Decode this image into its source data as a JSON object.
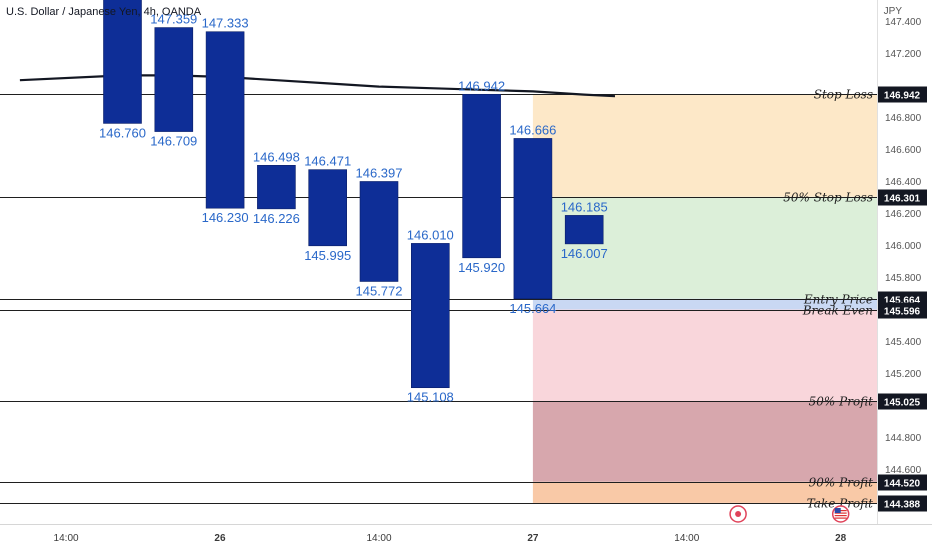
{
  "header": {
    "title": "U.S. Dollar / Japanese Yen, 4h, OANDA",
    "currency": "JPY"
  },
  "chart_data": {
    "type": "candlestick",
    "ylim": [
      144.35,
      147.55
    ],
    "y_ticks": [
      "147.400",
      "147.200",
      "147.000",
      "146.800",
      "146.600",
      "146.400",
      "146.200",
      "146.000",
      "145.800",
      "145.600",
      "145.400",
      "145.200",
      "145.000",
      "144.800",
      "144.600"
    ],
    "x_ticks": [
      {
        "label": "14:00",
        "t": -1.1
      },
      {
        "label": "26",
        "t": 1.9
      },
      {
        "label": "14:00",
        "t": 5.0
      },
      {
        "label": "27",
        "t": 8.0
      },
      {
        "label": "14:00",
        "t": 11.0
      },
      {
        "label": "28",
        "t": 14.0
      }
    ],
    "candles": [
      {
        "t": 0,
        "open": 146.76,
        "close": 147.6,
        "low_label": "146.760",
        "high_label": ""
      },
      {
        "t": 1,
        "open": 146.709,
        "close": 147.359,
        "low_label": "146.709",
        "high_label": "147.359"
      },
      {
        "t": 2,
        "open": 146.23,
        "close": 147.333,
        "low_label": "146.230",
        "high_label": "147.333"
      },
      {
        "t": 3,
        "open": 146.226,
        "close": 146.498,
        "low_label": "146.226",
        "high_label": "146.498"
      },
      {
        "t": 4,
        "open": 145.995,
        "close": 146.471,
        "low_label": "145.995",
        "high_label": "146.471"
      },
      {
        "t": 5,
        "open": 145.772,
        "close": 146.397,
        "low_label": "145.772",
        "high_label": "146.397"
      },
      {
        "t": 6,
        "open": 145.108,
        "close": 146.01,
        "low_label": "145.108",
        "high_label": "146.010"
      },
      {
        "t": 7,
        "open": 145.92,
        "close": 146.942,
        "low_label": "145.920",
        "high_label": "146.942"
      },
      {
        "t": 8,
        "open": 145.664,
        "close": 146.666,
        "low_label": "145.664",
        "high_label": "146.666"
      },
      {
        "t": 9,
        "open": 146.007,
        "close": 146.185,
        "low_label": "146.007",
        "high_label": "146.185"
      }
    ],
    "moving_average": [
      {
        "t": -2.0,
        "v": 147.03
      },
      {
        "t": 0.0,
        "v": 147.06
      },
      {
        "t": 1.0,
        "v": 147.06
      },
      {
        "t": 2.0,
        "v": 147.05
      },
      {
        "t": 3.0,
        "v": 147.03
      },
      {
        "t": 4.0,
        "v": 147.01
      },
      {
        "t": 5.0,
        "v": 146.99
      },
      {
        "t": 6.0,
        "v": 146.98
      },
      {
        "t": 7.0,
        "v": 146.97
      },
      {
        "t": 8.0,
        "v": 146.96
      },
      {
        "t": 9.0,
        "v": 146.94
      },
      {
        "t": 9.6,
        "v": 146.93
      }
    ],
    "levels": [
      {
        "name": "Stop Loss",
        "value": 146.942,
        "label": "146.942"
      },
      {
        "name": "50% Stop Loss",
        "value": 146.301,
        "label": "146.301"
      },
      {
        "name": "Entry Price",
        "value": 145.664,
        "label": "145.664"
      },
      {
        "name": "Break Even",
        "value": 145.596,
        "label": "145.596"
      },
      {
        "name": "50% Profit",
        "value": 145.025,
        "label": "145.025"
      },
      {
        "name": "90% Profit",
        "value": 144.52,
        "label": "144.520"
      },
      {
        "name": "Take Profit",
        "value": 144.388,
        "label": "144.388"
      }
    ],
    "zones": [
      {
        "from": 146.301,
        "to": 146.942,
        "color": "#fde8c8"
      },
      {
        "from": 145.664,
        "to": 146.301,
        "color": "#dcefd9"
      },
      {
        "from": 145.596,
        "to": 145.664,
        "color": "#c9d8f3"
      },
      {
        "from": 145.025,
        "to": 145.596,
        "color": "#f9d6db"
      },
      {
        "from": 144.52,
        "to": 145.025,
        "color": "#d7a7ad"
      },
      {
        "from": 144.388,
        "to": 144.52,
        "color": "#f9c9a7"
      }
    ],
    "zone_start_t": 8.0,
    "colors": {
      "candle": "#0e2e97",
      "candle_label": "#2a68c9",
      "ma": "#131722",
      "axis_text": "#555555",
      "price_tag": "#131722"
    },
    "events": [
      {
        "t": 12.0,
        "icon": "target-icon"
      },
      {
        "t": 14.0,
        "icon": "us-flag-icon"
      }
    ]
  }
}
